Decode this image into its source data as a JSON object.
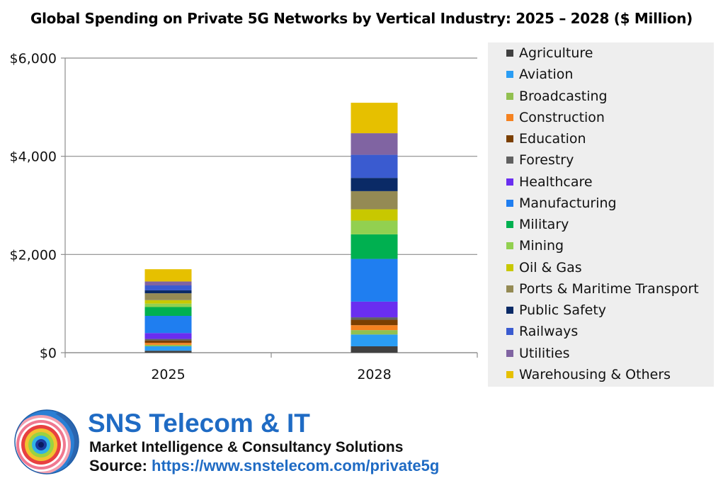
{
  "chart_data": {
    "type": "bar",
    "stacked": true,
    "title": "Global Spending on Private 5G Networks by Vertical Industry: 2025 – 2028 ($ Million)",
    "categories": [
      "2025",
      "2028"
    ],
    "ylim": [
      0,
      6000
    ],
    "yticks": [
      0,
      2000,
      4000,
      6000
    ],
    "ytick_labels": [
      "$0",
      "$2,000",
      "$4,000",
      "$6,000"
    ],
    "grid": true,
    "legend_position": "right",
    "series": [
      {
        "name": "Agriculture",
        "color": "#404040",
        "values": [
          40,
          130
        ]
      },
      {
        "name": "Aviation",
        "color": "#2a9df4",
        "values": [
          90,
          240
        ]
      },
      {
        "name": "Broadcasting",
        "color": "#92c050",
        "values": [
          30,
          90
        ]
      },
      {
        "name": "Construction",
        "color": "#f58220",
        "values": [
          40,
          100
        ]
      },
      {
        "name": "Education",
        "color": "#7b3f00",
        "values": [
          50,
          110
        ]
      },
      {
        "name": "Forestry",
        "color": "#606060",
        "values": [
          30,
          50
        ]
      },
      {
        "name": "Healthcare",
        "color": "#6a2ef0",
        "values": [
          120,
          320
        ]
      },
      {
        "name": "Manufacturing",
        "color": "#1f7ef0",
        "values": [
          350,
          870
        ]
      },
      {
        "name": "Military",
        "color": "#00b050",
        "values": [
          180,
          500
        ]
      },
      {
        "name": "Mining",
        "color": "#92d050",
        "values": [
          70,
          280
        ]
      },
      {
        "name": "Oil & Gas",
        "color": "#c8c800",
        "values": [
          70,
          230
        ]
      },
      {
        "name": "Ports & Maritime Transport",
        "color": "#948a54",
        "values": [
          140,
          370
        ]
      },
      {
        "name": "Public Safety",
        "color": "#0a2a66",
        "values": [
          60,
          270
        ]
      },
      {
        "name": "Railways",
        "color": "#3a5bd0",
        "values": [
          100,
          470
        ]
      },
      {
        "name": "Utilities",
        "color": "#8064a2",
        "values": [
          80,
          440
        ]
      },
      {
        "name": "Warehousing & Others",
        "color": "#e6c000",
        "values": [
          250,
          620
        ]
      }
    ]
  },
  "branding": {
    "name": "SNS Telecom & IT",
    "tagline": "Market Intelligence & Consultancy Solutions",
    "source_label": "Source:",
    "source_url": "https://www.snstelecom.com/private5g"
  }
}
